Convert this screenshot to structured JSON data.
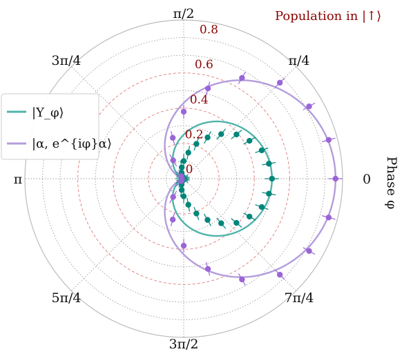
{
  "chart_data": {
    "type": "polar-scatter",
    "title": "Population in |↑⟩",
    "theta_label": "Phase φ",
    "theta_ticks": [
      "0",
      "π/4",
      "π/2",
      "3π/4",
      "π",
      "5π/4",
      "3π/2",
      "7π/4"
    ],
    "r_ticks": [
      "0",
      "0.2",
      "0.4",
      "0.6",
      "0.8"
    ],
    "rlim": [
      0,
      0.9
    ],
    "grid": true,
    "legend_position": "left",
    "series": [
      {
        "name": "|Υ_φ⟩",
        "color": "#4fb3aa",
        "marker_color": "#00857a",
        "fit_amplitude": 0.5,
        "points": [
          {
            "phi_deg": 0,
            "r": 0.5
          },
          {
            "phi_deg": 10,
            "r": 0.49
          },
          {
            "phi_deg": 20,
            "r": 0.47
          },
          {
            "phi_deg": 30,
            "r": 0.43
          },
          {
            "phi_deg": 40,
            "r": 0.39
          },
          {
            "phi_deg": 50,
            "r": 0.33
          },
          {
            "phi_deg": 60,
            "r": 0.27
          },
          {
            "phi_deg": 70,
            "r": 0.21
          },
          {
            "phi_deg": 80,
            "r": 0.15
          },
          {
            "phi_deg": 90,
            "r": 0.1
          },
          {
            "phi_deg": 100,
            "r": 0.065
          },
          {
            "phi_deg": 110,
            "r": 0.035
          },
          {
            "phi_deg": 120,
            "r": 0.018
          },
          {
            "phi_deg": 135,
            "r": 0.006
          },
          {
            "phi_deg": 150,
            "r": 0.012
          },
          {
            "phi_deg": 165,
            "r": 0.004
          },
          {
            "phi_deg": 180,
            "r": 0.008
          },
          {
            "phi_deg": 195,
            "r": 0.004
          },
          {
            "phi_deg": 210,
            "r": 0.012
          },
          {
            "phi_deg": 225,
            "r": 0.006
          },
          {
            "phi_deg": 240,
            "r": 0.018
          },
          {
            "phi_deg": 250,
            "r": 0.035
          },
          {
            "phi_deg": 260,
            "r": 0.065
          },
          {
            "phi_deg": 270,
            "r": 0.1
          },
          {
            "phi_deg": 280,
            "r": 0.15
          },
          {
            "phi_deg": 290,
            "r": 0.21
          },
          {
            "phi_deg": 300,
            "r": 0.27
          },
          {
            "phi_deg": 310,
            "r": 0.33
          },
          {
            "phi_deg": 320,
            "r": 0.39
          },
          {
            "phi_deg": 330,
            "r": 0.43
          },
          {
            "phi_deg": 340,
            "r": 0.47
          },
          {
            "phi_deg": 350,
            "r": 0.49
          }
        ]
      },
      {
        "name": "|α, e^{iφ}α⟩",
        "color": "#b39ddb",
        "marker_color": "#9a65d6",
        "fit_amplitude": 0.86,
        "points": [
          {
            "phi_deg": 0,
            "r": 0.86
          },
          {
            "phi_deg": 15,
            "r": 0.85
          },
          {
            "phi_deg": 30,
            "r": 0.82
          },
          {
            "phi_deg": 45,
            "r": 0.77
          },
          {
            "phi_deg": 60,
            "r": 0.66
          },
          {
            "phi_deg": 75,
            "r": 0.53
          },
          {
            "phi_deg": 90,
            "r": 0.38
          },
          {
            "phi_deg": 105,
            "r": 0.24
          },
          {
            "phi_deg": 120,
            "r": 0.12
          },
          {
            "phi_deg": 135,
            "r": 0.02
          },
          {
            "phi_deg": 225,
            "r": 0.02
          },
          {
            "phi_deg": 240,
            "r": 0.12
          },
          {
            "phi_deg": 255,
            "r": 0.24
          },
          {
            "phi_deg": 270,
            "r": 0.38
          },
          {
            "phi_deg": 285,
            "r": 0.53
          },
          {
            "phi_deg": 300,
            "r": 0.66
          },
          {
            "phi_deg": 315,
            "r": 0.77
          },
          {
            "phi_deg": 330,
            "r": 0.82
          },
          {
            "phi_deg": 345,
            "r": 0.85
          }
        ]
      }
    ]
  }
}
